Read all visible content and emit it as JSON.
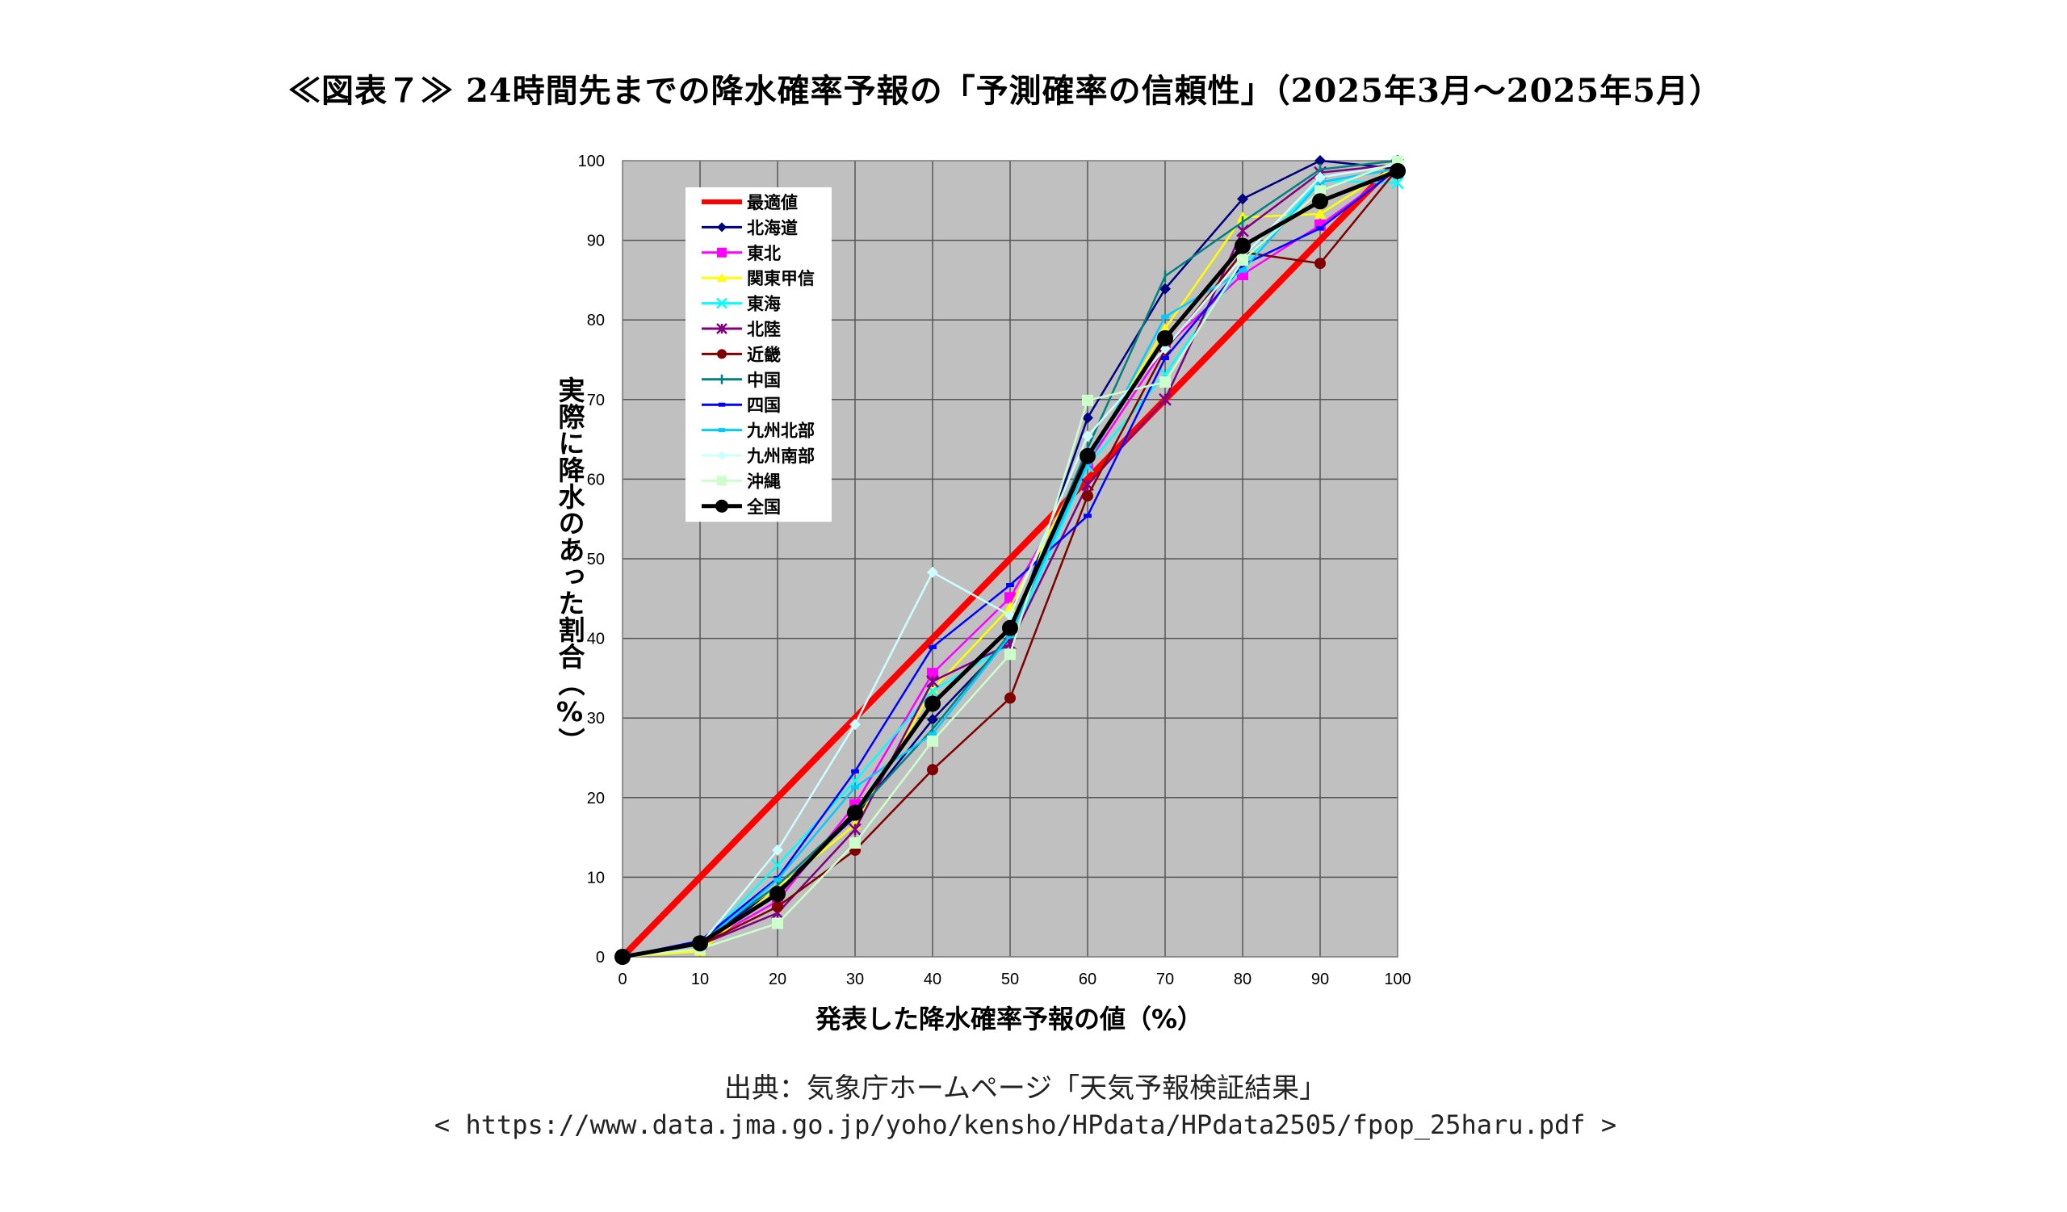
{
  "title": "≪図表７≫ 24時間先までの降水確率予報の「予測確率の信頼性」（2025年3月～2025年5月）",
  "source": "出典：気象庁ホームページ「天気予報検証結果」",
  "url": "< https://www.data.jma.go.jp/yoho/kensho/HPdata/HPdata2505/fpop_25haru.pdf >",
  "chart_data": {
    "type": "line",
    "title": "",
    "xlabel": "発表した降水確率予報の値（%）",
    "ylabel": "実際に降水のあった割合（%）",
    "xlim": [
      0,
      100
    ],
    "ylim": [
      0,
      100
    ],
    "x": [
      0,
      10,
      20,
      30,
      40,
      50,
      60,
      70,
      80,
      90,
      100
    ],
    "xticks": [
      "0",
      "10",
      "20",
      "30",
      "40",
      "50",
      "60",
      "70",
      "80",
      "90",
      "100"
    ],
    "yticks": [
      "0",
      "10",
      "20",
      "30",
      "40",
      "50",
      "60",
      "70",
      "80",
      "90",
      "100"
    ],
    "grid": true,
    "legend_position": "top-left",
    "background": "#c0c0c0",
    "series": [
      {
        "name": "最適値",
        "color": "#ff0000",
        "marker": "none",
        "width": 8,
        "values": [
          0,
          10,
          20,
          30,
          40,
          50,
          60,
          70,
          80,
          90,
          100
        ]
      },
      {
        "name": "北海道",
        "color": "#000080",
        "marker": "diamond",
        "values": [
          0,
          2,
          8.5,
          17.6,
          29.8,
          40,
          67.7,
          83.9,
          95.2,
          100,
          99
        ]
      },
      {
        "name": "東北",
        "color": "#ff00ff",
        "marker": "square",
        "values": [
          0,
          1.5,
          7,
          19.1,
          35.6,
          45.1,
          62,
          76.6,
          85.7,
          91.9,
          99
        ]
      },
      {
        "name": "関東甲信",
        "color": "#ffff00",
        "marker": "triangle",
        "values": [
          0,
          0.7,
          8.7,
          16.6,
          33.6,
          43.9,
          62.6,
          78.9,
          92.9,
          93.3,
          99.5
        ]
      },
      {
        "name": "東海",
        "color": "#00ffff",
        "marker": "x",
        "values": [
          0,
          1.5,
          11.5,
          22.1,
          33.4,
          39.3,
          61.6,
          73.2,
          86.9,
          97.5,
          97.2
        ]
      },
      {
        "name": "北陸",
        "color": "#800080",
        "marker": "star",
        "values": [
          0,
          1.5,
          5.5,
          16,
          34.6,
          39.3,
          59.3,
          70,
          91.2,
          98.5,
          99.5
        ]
      },
      {
        "name": "近畿",
        "color": "#800000",
        "marker": "circle",
        "values": [
          0,
          1.5,
          6.3,
          13.4,
          23.5,
          32.5,
          57.9,
          76.2,
          88.5,
          87.1,
          99
        ]
      },
      {
        "name": "中国",
        "color": "#008080",
        "marker": "plus",
        "values": [
          0,
          2,
          9,
          18,
          28.6,
          40.6,
          63.9,
          85.5,
          92.3,
          98.9,
          100
        ]
      },
      {
        "name": "四国",
        "color": "#0000ff",
        "marker": "dash",
        "values": [
          0,
          2,
          9.9,
          23.3,
          38.9,
          46.7,
          55.4,
          75.2,
          86.9,
          91.5,
          99
        ]
      },
      {
        "name": "九州北部",
        "color": "#00ccff",
        "marker": "dash",
        "values": [
          0,
          1.5,
          9.7,
          21.3,
          28,
          40.3,
          61.9,
          80.4,
          86.2,
          97.3,
          99
        ]
      },
      {
        "name": "九州南部",
        "color": "#ccffff",
        "marker": "diamond",
        "values": [
          0,
          1.5,
          13.4,
          29.2,
          48.3,
          42.9,
          65.4,
          76.4,
          87.9,
          97.9,
          99.5
        ]
      },
      {
        "name": "沖縄",
        "color": "#ccffcc",
        "marker": "square",
        "values": [
          0,
          1,
          4.2,
          14.3,
          27.1,
          38,
          69.9,
          72.2,
          87.5,
          96.2,
          99.9
        ]
      },
      {
        "name": "全国",
        "color": "#000000",
        "marker": "circle",
        "width": 5,
        "values": [
          0,
          1.7,
          7.9,
          18.1,
          31.8,
          41.3,
          62.9,
          77.7,
          89.3,
          94.9,
          98.7
        ]
      }
    ]
  }
}
